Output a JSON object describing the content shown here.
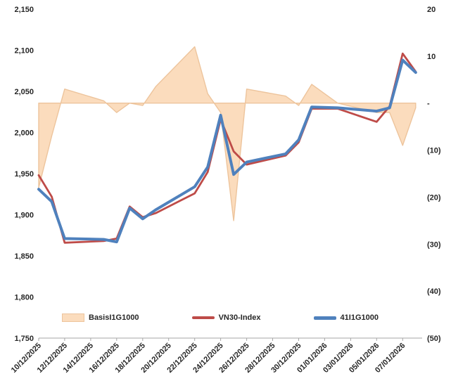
{
  "chart_data": {
    "type": "line",
    "title": "",
    "legend_position": "bottom-inside",
    "grid": false,
    "x_domain": [
      0,
      29.5
    ],
    "x_labels": [
      {
        "label": "10/12/2025",
        "day": 0
      },
      {
        "label": "12/12/2025",
        "day": 2
      },
      {
        "label": "14/12/2025",
        "day": 4
      },
      {
        "label": "16/12/2025",
        "day": 6
      },
      {
        "label": "18/12/2025",
        "day": 8
      },
      {
        "label": "20/12/2025",
        "day": 10
      },
      {
        "label": "22/12/2025",
        "day": 12
      },
      {
        "label": "24/12/2025",
        "day": 14
      },
      {
        "label": "26/12/2025",
        "day": 16
      },
      {
        "label": "28/12/2025",
        "day": 18
      },
      {
        "label": "30/12/2025",
        "day": 20
      },
      {
        "label": "01/01/2026",
        "day": 22
      },
      {
        "label": "03/01/2026",
        "day": 24
      },
      {
        "label": "05/01/2026",
        "day": 26
      },
      {
        "label": "07/01/2026",
        "day": 28
      }
    ],
    "left_axis": {
      "min": 1750,
      "max": 2150,
      "ticks": [
        {
          "label": "2,150",
          "value": 2150
        },
        {
          "label": "2,100",
          "value": 2100
        },
        {
          "label": "2,050",
          "value": 2050
        },
        {
          "label": "2,000",
          "value": 2000
        },
        {
          "label": "1,950",
          "value": 1950
        },
        {
          "label": "1,900",
          "value": 1900
        },
        {
          "label": "1,850",
          "value": 1850
        },
        {
          "label": "1,800",
          "value": 1800
        },
        {
          "label": "1,750",
          "value": 1750
        }
      ]
    },
    "right_axis": {
      "min": -50,
      "max": 20,
      "ticks": [
        {
          "label": "20",
          "value": 20
        },
        {
          "label": "10",
          "value": 10
        },
        {
          "label": "-",
          "value": 0
        },
        {
          "label": "(10)",
          "value": -10
        },
        {
          "label": "(20)",
          "value": -20
        },
        {
          "label": "(30)",
          "value": -30
        },
        {
          "label": "(40)",
          "value": -40
        },
        {
          "label": "(50)",
          "value": -50
        }
      ]
    },
    "points_days": [
      0,
      1,
      2,
      5,
      6,
      7,
      8,
      9,
      12,
      13,
      14,
      15,
      16,
      19,
      20,
      21,
      23,
      26,
      27,
      28,
      29
    ],
    "point_dates": [
      "10/12/2025",
      "11/12/2025",
      "12/12/2025",
      "15/12/2025",
      "16/12/2025",
      "17/12/2025",
      "18/12/2025",
      "19/12/2025",
      "22/12/2025",
      "23/12/2025",
      "24/12/2025",
      "25/12/2025",
      "26/12/2025",
      "29/12/2025",
      "30/12/2025",
      "31/12/2025",
      "02/01/2026",
      "05/01/2026",
      "06/01/2026",
      "07/01/2026",
      "08/01/2026"
    ],
    "series": [
      {
        "name": "BasisI1G1000",
        "type": "area",
        "axis": "right",
        "fill": "#FBDCBD",
        "stroke": "#EDC49C",
        "values": [
          -18,
          -7,
          3,
          0.5,
          -2,
          0,
          -0.5,
          3.5,
          12,
          2,
          -2,
          -25,
          3,
          1.5,
          -0.5,
          4,
          0,
          -2,
          -2,
          -9,
          -1
        ]
      },
      {
        "name": "VN30-Index",
        "type": "line",
        "axis": "left",
        "color": "#BE4B48",
        "width": 2.8,
        "values": [
          1948,
          1922,
          1866,
          1868,
          1871,
          1910,
          1897,
          1902,
          1926,
          1952,
          2016,
          1977,
          1961,
          1972,
          1988,
          2029,
          2029,
          2013,
          2032,
          2096,
          2074
        ]
      },
      {
        "name": "41I1G1000",
        "type": "line",
        "axis": "left",
        "color": "#4F81BD",
        "width": 4,
        "values": [
          1931,
          1916,
          1871,
          1870,
          1867,
          1908,
          1895,
          1906,
          1934,
          1958,
          2021,
          1949,
          1964,
          1974,
          1991,
          2031,
          2030,
          2026,
          2030,
          2088,
          2073
        ]
      }
    ]
  }
}
